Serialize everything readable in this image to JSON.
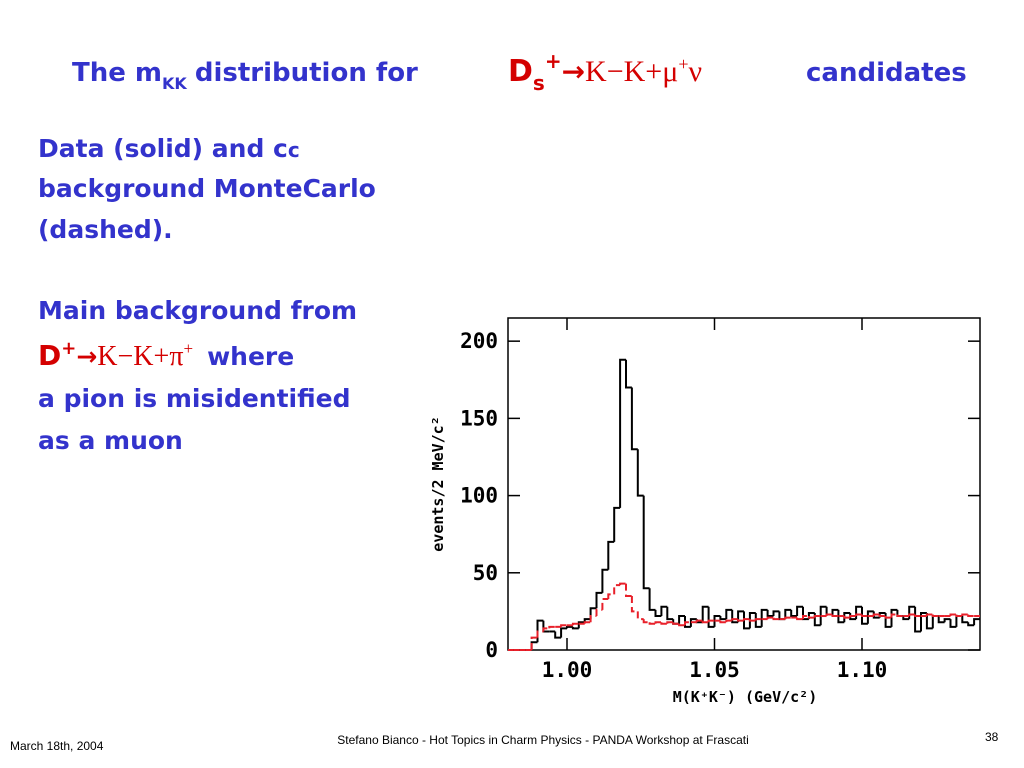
{
  "slide": {
    "title": {
      "prefix": "The m",
      "prefix_sub": "KK",
      "mid": "distribution for",
      "parent": "D",
      "parent_sub": "s",
      "parent_sup": "+",
      "arrow": "→",
      "products": "K−K+μ",
      "products_sup": "+",
      "final": "ν",
      "suffix": "candidates"
    },
    "para1": {
      "line1": "Data (solid) and c",
      "line1_small": "c",
      "line2": "background MonteCarlo",
      "line3": "(dashed)."
    },
    "para2": {
      "line1": "Main background from",
      "parent": "D",
      "parent_sup": "+",
      "arrow": "→",
      "products": "K−K+π",
      "products_sup": "+",
      "where": "where",
      "line3": "a pion is misidentified",
      "line4": "as a muon"
    },
    "footer": {
      "date": "March 18th, 2004",
      "center": "Stefano Bianco - Hot Topics in Charm Physics - PANDA Workshop at Frascati",
      "page": "38"
    }
  },
  "chart_data": {
    "type": "histogram",
    "x_label": "M(K⁺K⁻) (GeV/c²)",
    "y_label": "events/2 MeV/c²",
    "bins": [
      0.98,
      0.982,
      0.984,
      0.986,
      0.988,
      0.99,
      0.992,
      0.994,
      0.996,
      0.998,
      1.0,
      1.002,
      1.004,
      1.006,
      1.008,
      1.01,
      1.012,
      1.014,
      1.016,
      1.018,
      1.02,
      1.022,
      1.024,
      1.026,
      1.028,
      1.03,
      1.032,
      1.034,
      1.036,
      1.038,
      1.04,
      1.042,
      1.044,
      1.046,
      1.048,
      1.05,
      1.052,
      1.054,
      1.056,
      1.058,
      1.06,
      1.062,
      1.064,
      1.066,
      1.068,
      1.07,
      1.072,
      1.074,
      1.076,
      1.078,
      1.08,
      1.082,
      1.084,
      1.086,
      1.088,
      1.09,
      1.092,
      1.094,
      1.096,
      1.098,
      1.1,
      1.102,
      1.104,
      1.106,
      1.108,
      1.11,
      1.112,
      1.114,
      1.116,
      1.118,
      1.12,
      1.122,
      1.124,
      1.126,
      1.128,
      1.13,
      1.132,
      1.134,
      1.136,
      1.138,
      1.14
    ],
    "series": [
      {
        "color": "#000000",
        "style": "solid",
        "values": [
          0,
          0,
          0,
          0,
          5,
          19,
          12,
          12,
          8,
          14,
          15,
          14,
          18,
          20,
          27,
          37,
          52,
          70,
          92,
          188,
          170,
          130,
          100,
          40,
          26,
          22,
          28,
          20,
          17,
          22,
          15,
          20,
          18,
          28,
          15,
          22,
          20,
          26,
          18,
          25,
          14,
          24,
          15,
          26,
          22,
          25,
          20,
          26,
          22,
          28,
          20,
          24,
          16,
          28,
          23,
          26,
          18,
          24,
          20,
          28,
          17,
          25,
          21,
          24,
          15,
          26,
          22,
          20,
          28,
          12,
          24,
          14,
          22,
          18,
          20,
          15,
          22,
          18,
          16,
          20
        ]
      },
      {
        "color": "#e8202a",
        "style": "dashed",
        "values": [
          0,
          0,
          0,
          0,
          8,
          12,
          14,
          15,
          15,
          16,
          16,
          17,
          17,
          18,
          22,
          26,
          33,
          36,
          42,
          43,
          35,
          25,
          20,
          18,
          17,
          18,
          17,
          18,
          17,
          16,
          18,
          18,
          19,
          18,
          19,
          19,
          18,
          19,
          20,
          19,
          20,
          19,
          20,
          20,
          21,
          20,
          20,
          21,
          21,
          20,
          22,
          21,
          22,
          22,
          23,
          22,
          22,
          21,
          22,
          23,
          22,
          22,
          23,
          22,
          21,
          23,
          22,
          22,
          23,
          22,
          22,
          23,
          22,
          22,
          22,
          23,
          22,
          23,
          22,
          22
        ]
      }
    ],
    "xlim": [
      0.98,
      1.14
    ],
    "ylim": [
      0,
      215
    ],
    "xticks": [
      {
        "value": 1.0,
        "label": "1.00"
      },
      {
        "value": 1.05,
        "label": "1.05"
      },
      {
        "value": 1.1,
        "label": "1.10"
      }
    ],
    "yticks": [
      0,
      50,
      100,
      150,
      200
    ],
    "grid": false
  }
}
